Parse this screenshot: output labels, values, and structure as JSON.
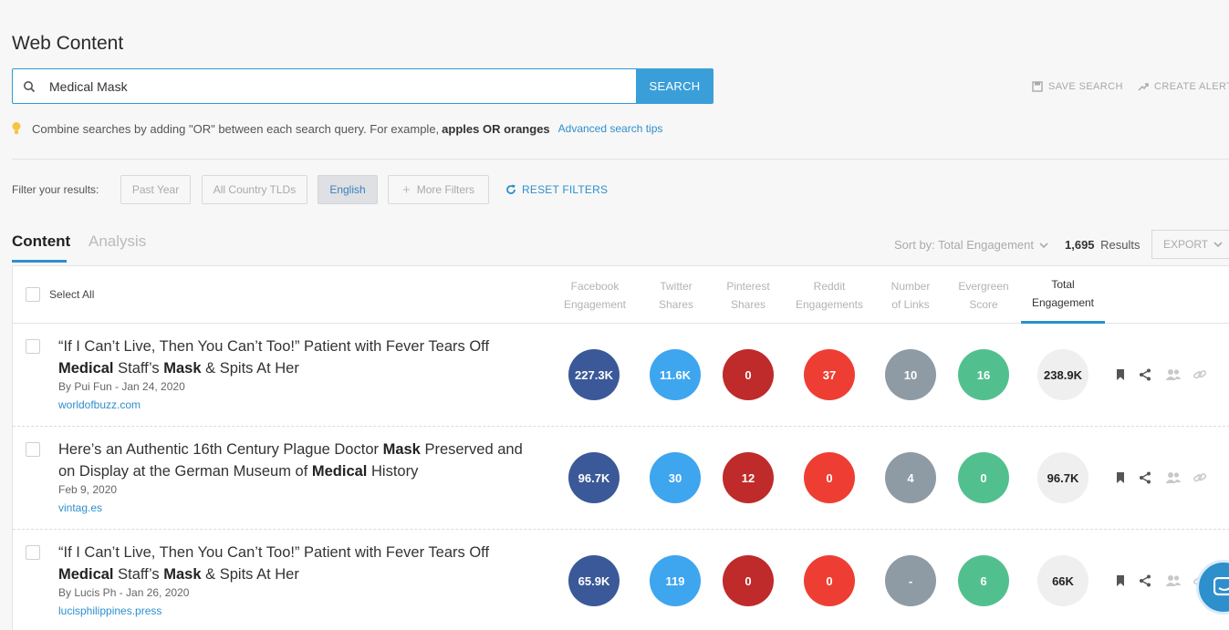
{
  "page": {
    "title": "Web Content"
  },
  "search": {
    "value": "Medical Mask",
    "button": "SEARCH"
  },
  "top_actions": {
    "save_search": "SAVE SEARCH",
    "create_alert": "CREATE ALERT"
  },
  "tip": {
    "text": "Combine searches by adding \"OR\" between each search query. For example,",
    "example": "apples OR oranges",
    "link": "Advanced search tips"
  },
  "filters": {
    "label": "Filter your results:",
    "chips": [
      "Past Year",
      "All Country TLDs",
      "English",
      "More Filters"
    ],
    "active_chip": "English",
    "reset": "RESET FILTERS"
  },
  "tabs": {
    "content": "Content",
    "analysis": "Analysis"
  },
  "sort": {
    "label": "Sort by: Total Engagement"
  },
  "results": {
    "count": "1,695",
    "label": "Results"
  },
  "export": {
    "label": "EXPORT"
  },
  "table": {
    "select_all": "Select All",
    "columns": [
      "Facebook\nEngagement",
      "Twitter\nShares",
      "Pinterest\nShares",
      "Reddit\nEngagements",
      "Number\nof Links",
      "Evergreen\nScore",
      "Total\nEngagement"
    ],
    "rows": [
      {
        "title_parts": [
          {
            "t": "“If I Can’t Live, Then You Can’t Too!” Patient with Fever Tears Off ",
            "b": false
          },
          {
            "t": "Medical",
            "b": true
          },
          {
            "t": " Staff’s ",
            "b": false
          },
          {
            "t": "Mask",
            "b": true
          },
          {
            "t": " & Spits At Her",
            "b": false
          }
        ],
        "meta": "By Pui Fun - Jan 24, 2020",
        "domain": "worldofbuzz.com",
        "facebook": "227.3K",
        "twitter": "11.6K",
        "pinterest": "0",
        "reddit": "37",
        "links": "10",
        "evergreen": "16",
        "total": "238.9K"
      },
      {
        "title_parts": [
          {
            "t": "Here’s an Authentic 16th Century Plague Doctor ",
            "b": false
          },
          {
            "t": "Mask",
            "b": true
          },
          {
            "t": " Preserved and on Display at the German Museum of ",
            "b": false
          },
          {
            "t": "Medical",
            "b": true
          },
          {
            "t": " History",
            "b": false
          }
        ],
        "meta": "Feb 9, 2020",
        "domain": "vintag.es",
        "facebook": "96.7K",
        "twitter": "30",
        "pinterest": "12",
        "reddit": "0",
        "links": "4",
        "evergreen": "0",
        "total": "96.7K"
      },
      {
        "title_parts": [
          {
            "t": "“If I Can’t Live, Then You Can’t Too!” Patient with Fever Tears Off ",
            "b": false
          },
          {
            "t": "Medical",
            "b": true
          },
          {
            "t": " Staff’s ",
            "b": false
          },
          {
            "t": "Mask",
            "b": true
          },
          {
            "t": " & Spits At Her",
            "b": false
          }
        ],
        "meta": "By Lucis Ph - Jan 26, 2020",
        "domain": "lucisphilippines.press",
        "facebook": "65.9K",
        "twitter": "119",
        "pinterest": "0",
        "reddit": "0",
        "links": "-",
        "evergreen": "6",
        "total": "66K"
      }
    ]
  },
  "colors": {
    "accent": "#2d8fcc",
    "facebook": "#3b5998",
    "twitter": "#3ea5ef",
    "pinterest": "#bf2a2a",
    "reddit": "#ee3e33",
    "links": "#8e9ba5",
    "evergreen": "#52c08e",
    "total": "#efefef"
  },
  "icons": {
    "search": "search-icon",
    "save": "save-icon",
    "alert": "trend-icon",
    "bulb": "lightbulb-icon",
    "reset": "refresh-icon",
    "chevron": "chevron-down-icon",
    "bookmark": "bookmark-icon",
    "share": "share-icon",
    "influencers": "people-icon",
    "link": "link-icon",
    "chat": "chat-icon"
  }
}
